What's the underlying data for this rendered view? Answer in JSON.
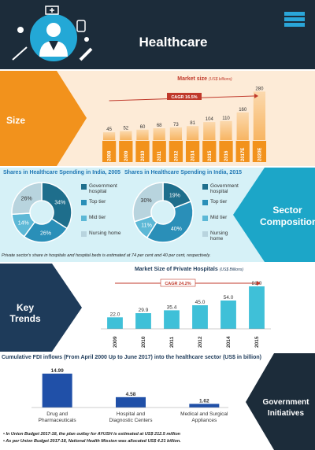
{
  "header": {
    "title": "Healthcare"
  },
  "sections": {
    "size": "Size",
    "sector": "Sector Composition",
    "trends": "Key Trends",
    "government": "Government Initiatives"
  },
  "colors": {
    "navy": "#1c2c3a",
    "orange": "#f2921c",
    "light_orange": "#f8c07e",
    "teal": "#1ca6c8",
    "dark_blue": "#1e3b5a",
    "blue_cyan": "#2aa6d9"
  },
  "chart_data": [
    {
      "type": "bar",
      "title": "Market size",
      "unit": "(US$ billions)",
      "cagr": "CAGR 16.5%",
      "categories": [
        "2008",
        "2009",
        "2010",
        "2011",
        "2012",
        "2014",
        "2015",
        "2016",
        "2017E",
        "2020E"
      ],
      "values": [
        45,
        52,
        60,
        68,
        73,
        81,
        104,
        110,
        160,
        280
      ],
      "ylim": [
        0,
        300
      ]
    },
    {
      "type": "pie",
      "title": "Shares in Healthcare Spending in India, 2005",
      "labels": [
        "Government hospital",
        "Top tier",
        "Mid tier",
        "Nursing home"
      ],
      "values": [
        34,
        26,
        14,
        26
      ],
      "value_labels": [
        "34%",
        "26%",
        "14%",
        "26%"
      ]
    },
    {
      "type": "pie",
      "title": "Shares in Healthcare Spending in India, 2015",
      "labels": [
        "Government hospital",
        "Top tier",
        "Mid tier",
        "Nursing home"
      ],
      "values": [
        19,
        40,
        11,
        30
      ],
      "value_labels": [
        "19%",
        "40%",
        "11%",
        "30%"
      ]
    },
    {
      "type": "bar",
      "title": "Market Size of Private Hospitals",
      "unit": "(US$ Billions)",
      "cagr": "CAGR 24.2%",
      "categories": [
        "2009",
        "2010",
        "2011",
        "2012",
        "2014",
        "2015"
      ],
      "values": [
        22.0,
        29.9,
        35.4,
        45.0,
        54.0,
        81.0
      ],
      "value_labels": [
        "22.0",
        "29.9",
        "35.4",
        "45.0",
        "54.0",
        "81.0"
      ],
      "ylim": [
        0,
        90
      ]
    },
    {
      "type": "bar",
      "title": "Cumulative FDI inflows (From April 2000 Up to June 2017) into the healthcare sector (US$ in billion)",
      "categories": [
        "Drug and Pharmaceuticals",
        "Hospital and Diagnostic Centers",
        "Medical and Surgical Appliances"
      ],
      "values": [
        14.99,
        4.58,
        1.62
      ],
      "value_labels": [
        "14.99",
        "4.58",
        "1.62"
      ],
      "ylim": [
        0,
        16
      ]
    }
  ],
  "notes": {
    "sector": "Private sector's share in hospitals and hospital beds is estimated at 74 per cent and 40 per cent, respectively.",
    "gov1": "In Union Budget 2017-18, the plan outlay for AYUSH is estimated at US$ 212.5 million",
    "gov2": "As per Union Budget 2017-18, National Health Mission was allocated US$ 4.21 billion."
  },
  "icons": [
    "doctor-icon",
    "hospital-icon",
    "syringe-icon",
    "bandage-icon",
    "medicine-bottle-icon",
    "book-stack-icon"
  ]
}
